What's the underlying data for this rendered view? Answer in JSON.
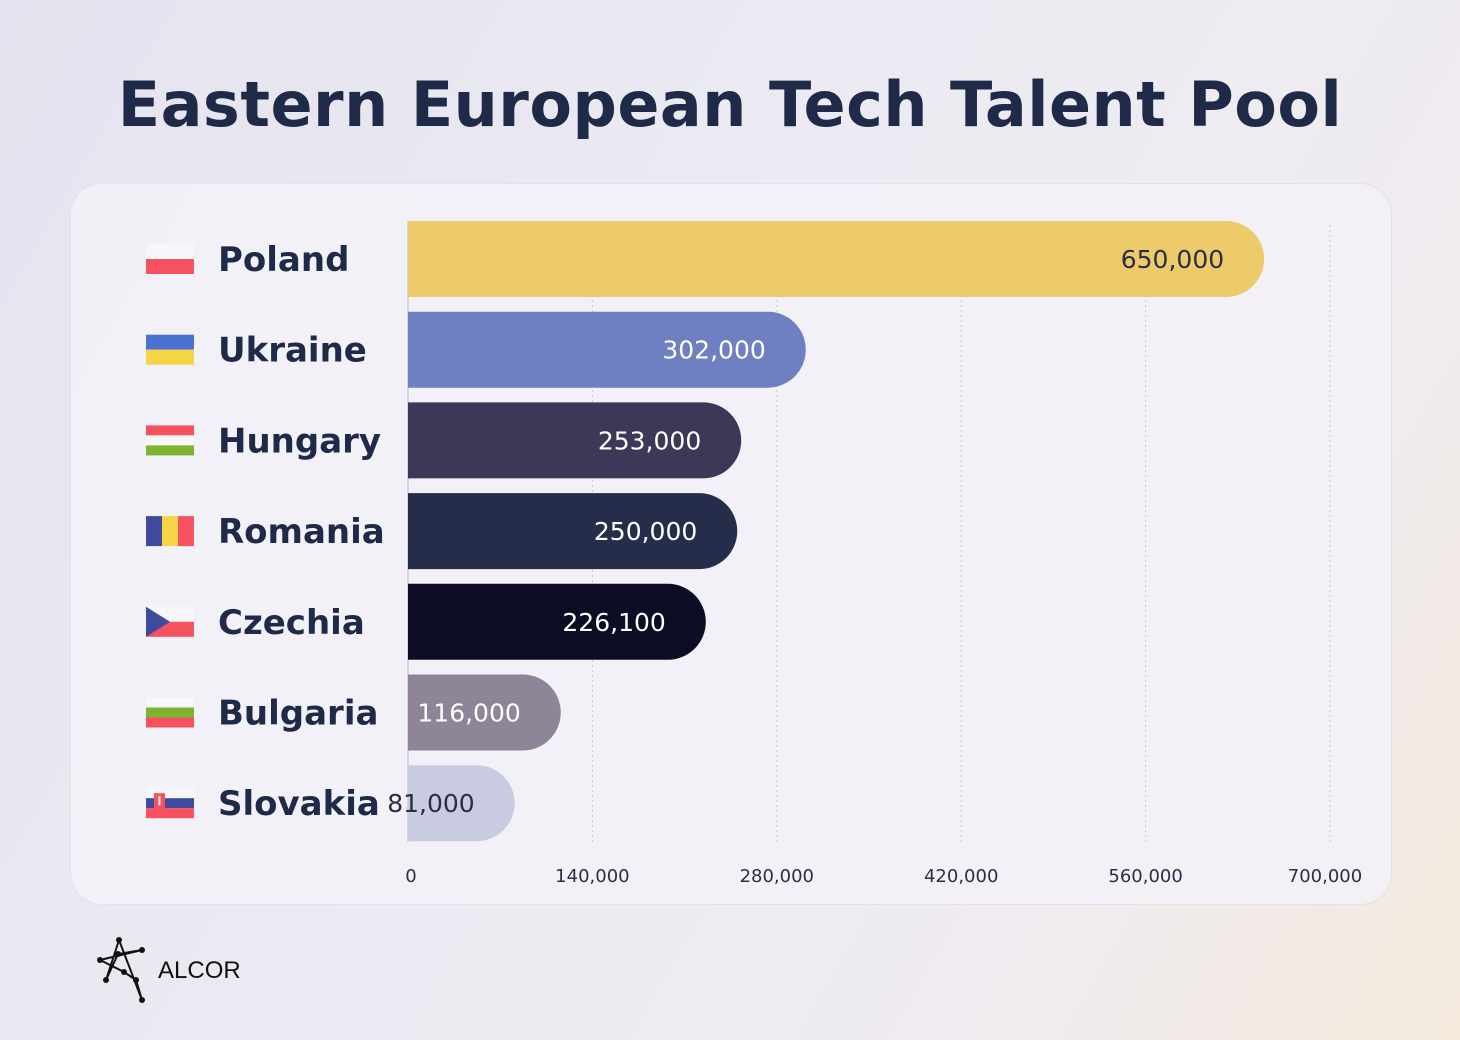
{
  "chart_data": {
    "type": "bar",
    "orientation": "horizontal",
    "title": "Eastern European Tech Talent Pool",
    "categories": [
      "Poland",
      "Ukraine",
      "Hungary",
      "Romania",
      "Czechia",
      "Bulgaria",
      "Slovakia"
    ],
    "values": [
      650000,
      302000,
      253000,
      250000,
      226100,
      116000,
      81000
    ],
    "value_labels": [
      "650,000",
      "302,000",
      "253,000",
      "250,000",
      "226,100",
      "116,000",
      "81,000"
    ],
    "bar_colors": [
      "#eecb6a",
      "#6f80c2",
      "#3d3858",
      "#262d4b",
      "#0c0d24",
      "#8e8599",
      "#c9cbe0"
    ],
    "value_label_colors": [
      "#2a2f45",
      "#ffffff",
      "#ffffff",
      "#ffffff",
      "#ffffff",
      "#ffffff",
      "#2a2f45"
    ],
    "xlim": [
      0,
      700000
    ],
    "xticks": [
      0,
      140000,
      280000,
      420000,
      560000,
      700000
    ],
    "xtick_labels": [
      "0",
      "140,000",
      "280,000",
      "420,000",
      "560,000",
      "700,000"
    ],
    "grid": "vertical dashed",
    "xlabel": "",
    "ylabel": "",
    "flags": [
      "poland-flag",
      "ukraine-flag",
      "hungary-flag",
      "romania-flag",
      "czechia-flag",
      "bulgaria-flag",
      "slovakia-flag"
    ]
  },
  "brand": {
    "logo_text": "ALCOR",
    "watermark": "ALCOR"
  }
}
